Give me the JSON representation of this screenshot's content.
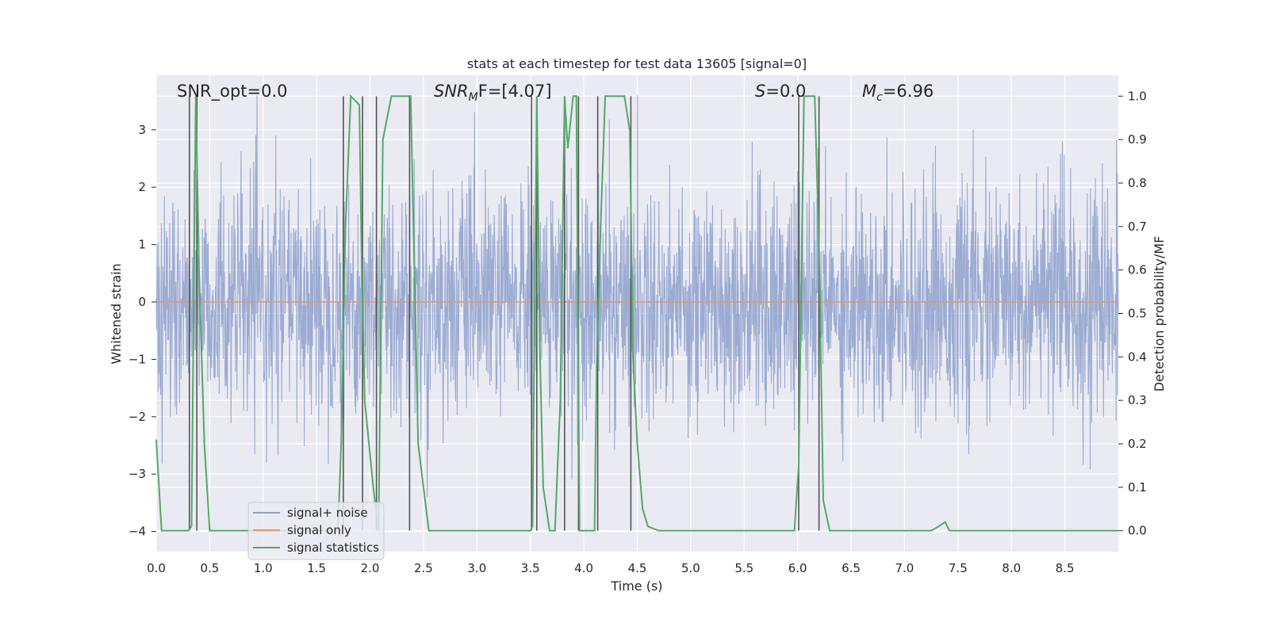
{
  "chart_data": {
    "type": "line",
    "title": "stats at each timestep for test data 13605 [signal=0]",
    "xlabel": "Time (s)",
    "ylabel": "Whitened strain",
    "y2label": "Detection probability/MF",
    "xlim": [
      0,
      9
    ],
    "ylim": [
      -4.35,
      3.95
    ],
    "y2lim": [
      -0.048,
      1.048
    ],
    "xticks": [
      "0.0",
      "0.5",
      "1.0",
      "1.5",
      "2.0",
      "2.5",
      "3.0",
      "3.5",
      "4.0",
      "4.5",
      "5.0",
      "5.5",
      "6.0",
      "6.5",
      "7.0",
      "7.5",
      "8.0",
      "8.5"
    ],
    "yticks": [
      "3",
      "2",
      "1",
      "0",
      "−1",
      "−2",
      "−3",
      "−4"
    ],
    "y2ticks": [
      "1.0",
      "0.9",
      "0.8",
      "0.7",
      "0.6",
      "0.5",
      "0.4",
      "0.3",
      "0.2",
      "0.1",
      "0.0"
    ],
    "annotations": [
      {
        "id": "snr-opt",
        "text": "SNR_opt=0.0"
      },
      {
        "id": "snr-mf",
        "main": "SNR",
        "sub": "M",
        "tail": "F=[4.07]"
      },
      {
        "id": "s-stat",
        "main": "S",
        "tail": "=0.0"
      },
      {
        "id": "mc",
        "main": "M",
        "sub": "c",
        "tail": "=6.96"
      }
    ],
    "legend": {
      "placement": "lower-left",
      "entries": [
        {
          "label": "signal+ noise",
          "color": "#8da0cb"
        },
        {
          "label": "signal only",
          "color": "#e5956b"
        },
        {
          "label": "signal statistics",
          "color": "#55a868"
        }
      ]
    },
    "grid": true,
    "series": [
      {
        "name": "signal+ noise",
        "color": "#92a4ce",
        "description": "whitened noisy strain, approx. N(0,1), samples spanning 0-9 s",
        "stats": {
          "mean": 0,
          "std": 1,
          "min": -3.7,
          "max": 3.6
        }
      },
      {
        "name": "signal only",
        "color": "#e5956b",
        "x": [
          0,
          9
        ],
        "y": [
          0,
          0
        ]
      },
      {
        "name": "signal statistics",
        "color": "#55a868",
        "axis": "right",
        "x": [
          0,
          0.05,
          0.15,
          0.25,
          0.3,
          0.33,
          0.37,
          0.4,
          0.45,
          0.5,
          0.55,
          1.7,
          1.73,
          1.77,
          1.82,
          1.9,
          1.92,
          1.95,
          2.03,
          2.08,
          2.12,
          2.2,
          2.3,
          2.38,
          2.45,
          2.55,
          3.45,
          3.5,
          3.52,
          3.56,
          3.59,
          3.62,
          3.68,
          3.73,
          3.78,
          3.82,
          3.85,
          3.9,
          3.93,
          3.96,
          4.0,
          4.05,
          4.1,
          4.12,
          4.16,
          4.2,
          4.3,
          4.38,
          4.43,
          4.46,
          4.5,
          4.55,
          4.6,
          4.7,
          5.97,
          6.01,
          6.06,
          6.11,
          6.16,
          6.2,
          6.24,
          6.3,
          6.35,
          7.25,
          7.32,
          7.38,
          7.42,
          8.5,
          9.0
        ],
        "y": [
          0.21,
          0.0,
          0.0,
          0.0,
          0.0,
          0.01,
          1.0,
          0.6,
          0.2,
          0.0,
          0.0,
          0.0,
          0.2,
          0.7,
          1.0,
          0.98,
          0.65,
          0.3,
          0.1,
          0.0,
          0.9,
          1.0,
          1.0,
          1.0,
          0.2,
          0.0,
          0.0,
          0.0,
          0.01,
          1.0,
          0.4,
          0.1,
          0.0,
          0.0,
          0.3,
          1.0,
          0.88,
          1.0,
          1.0,
          0.0,
          0.0,
          0.0,
          0.0,
          0.38,
          0.72,
          1.0,
          1.0,
          1.0,
          0.92,
          0.4,
          0.2,
          0.05,
          0.01,
          0.0,
          0.0,
          0.15,
          1.0,
          1.0,
          1.0,
          0.65,
          0.07,
          0.0,
          0.0,
          0.0,
          0.01,
          0.02,
          0.0,
          0.0,
          0.0
        ]
      }
    ],
    "markers": {
      "description": "vertical grey segments at detection threshold crossings",
      "color": "#555555",
      "x": [
        0.31,
        0.38,
        1.75,
        1.93,
        2.06,
        2.37,
        3.51,
        3.56,
        3.82,
        3.95,
        4.13,
        4.44,
        6.01,
        6.2
      ]
    }
  }
}
